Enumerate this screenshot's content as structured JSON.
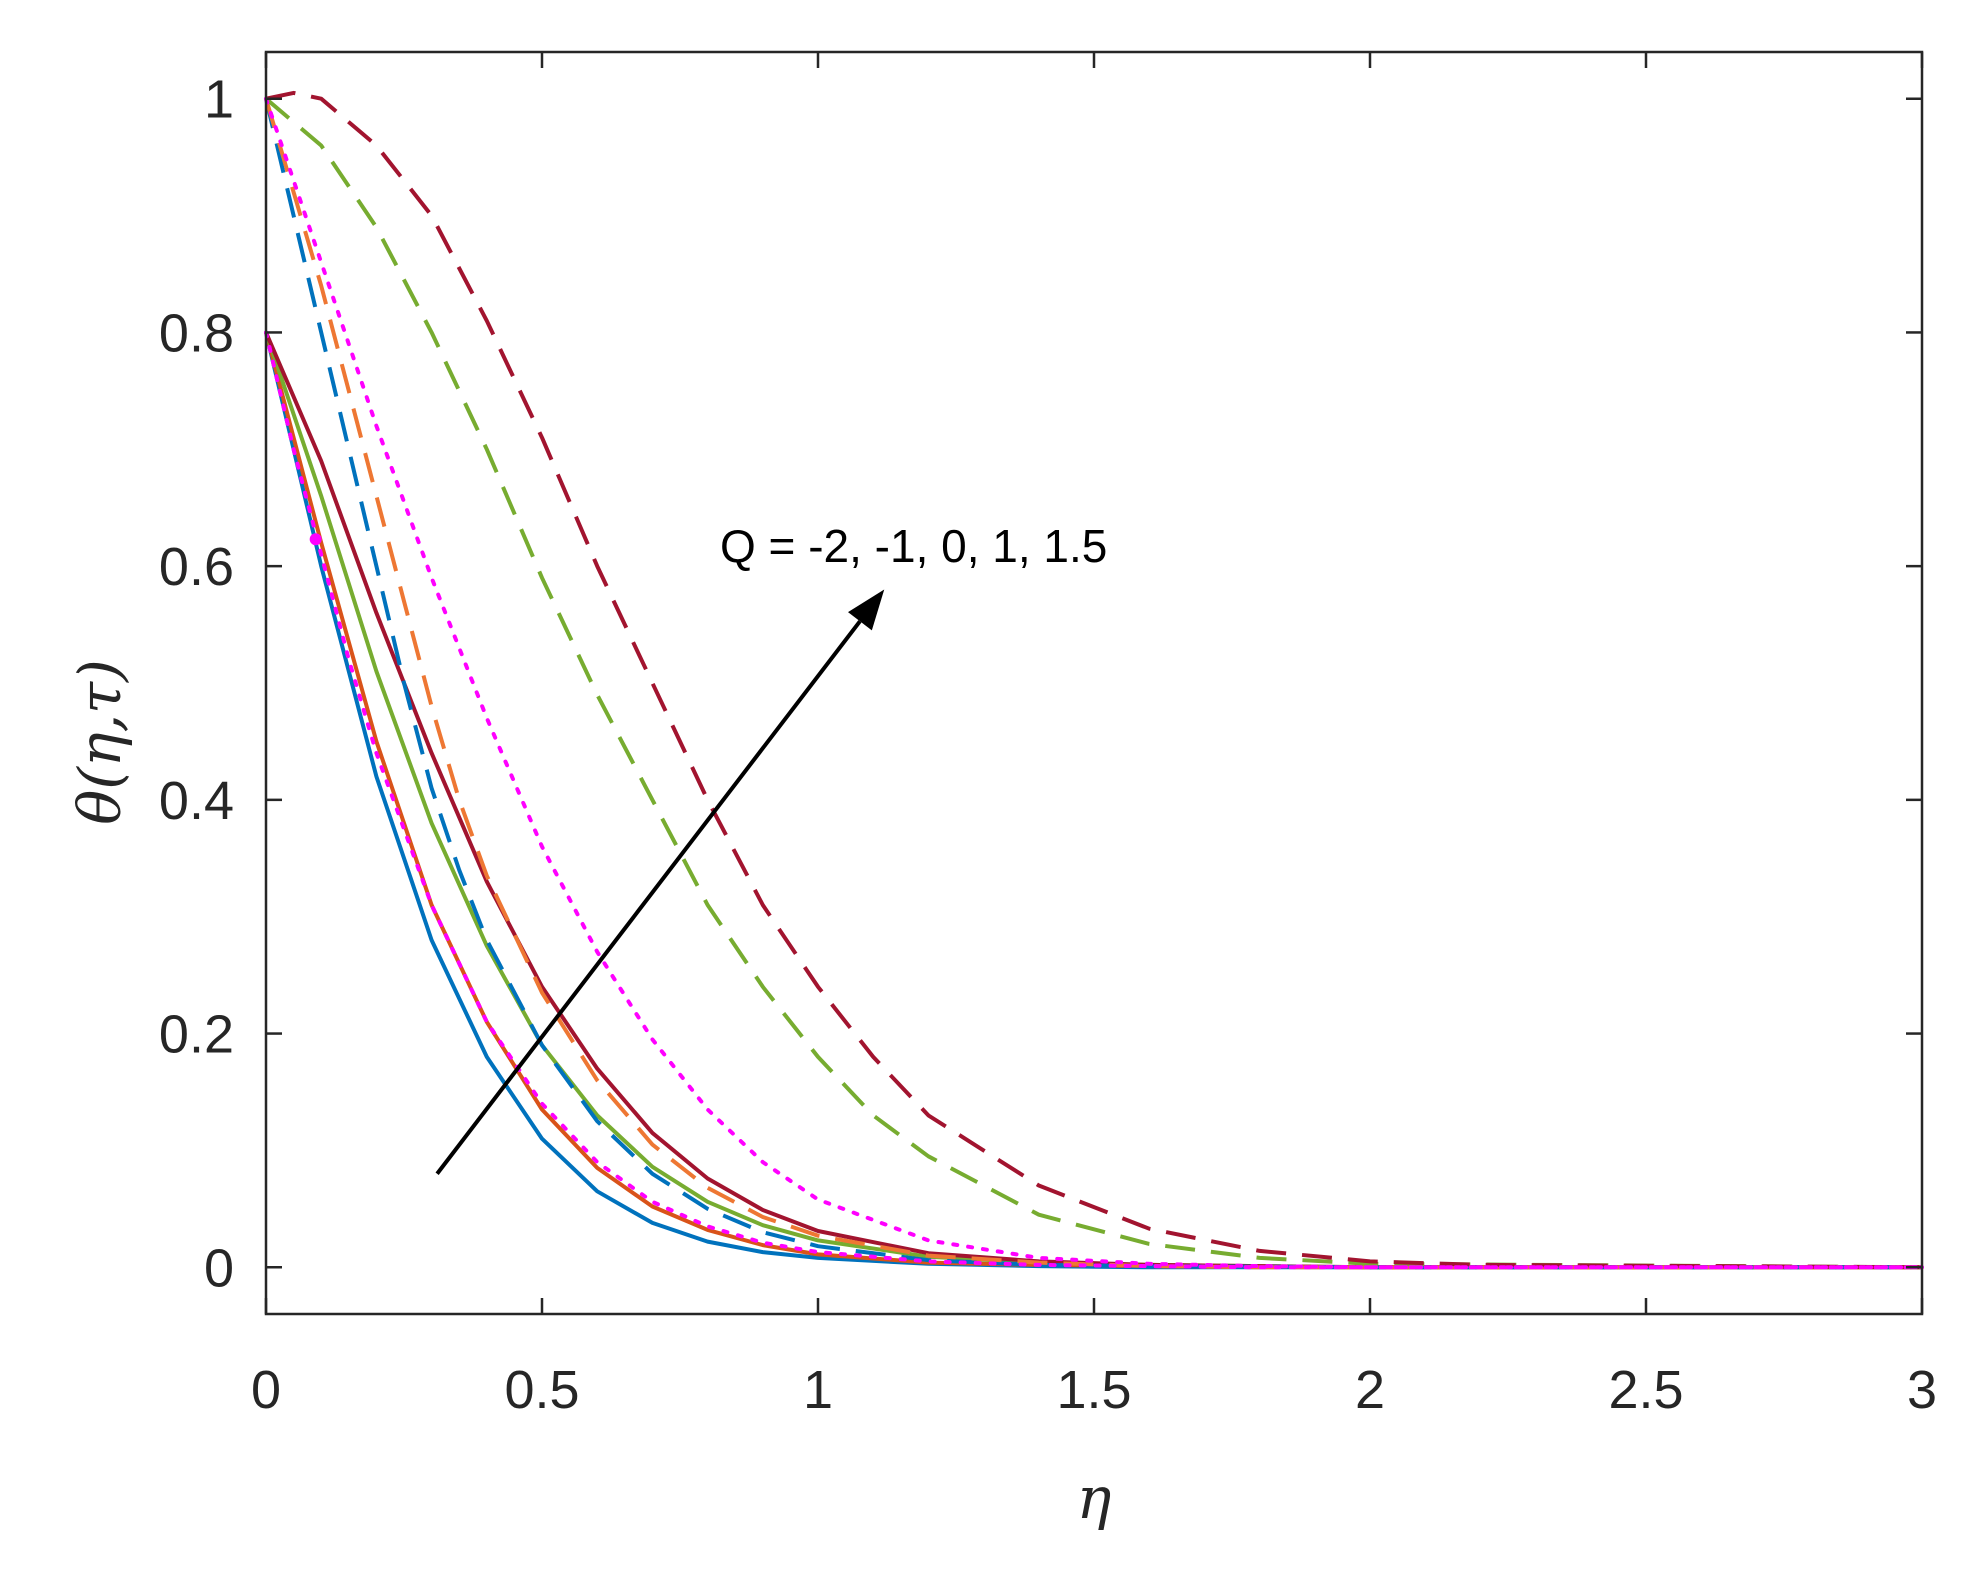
{
  "chart_data": {
    "type": "line",
    "xlabel": "η",
    "ylabel": "θ(η,τ)",
    "xlim": [
      0,
      3
    ],
    "ylim": [
      -0.04,
      1.04
    ],
    "xticks": [
      "0",
      "0.5",
      "1",
      "1.5",
      "2",
      "2.5",
      "3"
    ],
    "yticks": [
      "0",
      "0.2",
      "0.4",
      "0.6",
      "0.8",
      "1"
    ],
    "grid": false,
    "box": true,
    "annotation": {
      "text": "Q = -2, -1, 0, 1, 1.5",
      "arrow_from": [
        0.31,
        0.08
      ],
      "arrow_to": [
        1.12,
        0.58
      ]
    },
    "series": [
      {
        "group": "solid",
        "color": "#0072BD",
        "style": "solid",
        "x": [
          0,
          0.1,
          0.2,
          0.3,
          0.4,
          0.5,
          0.6,
          0.7,
          0.8,
          0.9,
          1.0,
          1.2,
          1.4,
          1.6,
          2.0,
          3.0
        ],
        "y": [
          0.8,
          0.6,
          0.42,
          0.28,
          0.18,
          0.11,
          0.065,
          0.038,
          0.022,
          0.013,
          0.008,
          0.003,
          0.001,
          0,
          0,
          0
        ]
      },
      {
        "group": "solid",
        "color": "#D95319",
        "style": "solid",
        "x": [
          0,
          0.1,
          0.2,
          0.3,
          0.4,
          0.5,
          0.6,
          0.7,
          0.8,
          0.9,
          1.0,
          1.2,
          1.4,
          1.6,
          2.0,
          3.0
        ],
        "y": [
          0.8,
          0.62,
          0.45,
          0.31,
          0.21,
          0.135,
          0.085,
          0.052,
          0.032,
          0.019,
          0.011,
          0.004,
          0.002,
          0.001,
          0,
          0
        ]
      },
      {
        "group": "solid",
        "color": "#77AC30",
        "style": "solid",
        "x": [
          0,
          0.1,
          0.2,
          0.3,
          0.4,
          0.5,
          0.6,
          0.7,
          0.8,
          0.9,
          1.0,
          1.2,
          1.4,
          1.6,
          1.8,
          2.0,
          3.0
        ],
        "y": [
          0.8,
          0.66,
          0.51,
          0.38,
          0.275,
          0.19,
          0.13,
          0.086,
          0.056,
          0.036,
          0.023,
          0.009,
          0.004,
          0.002,
          0.001,
          0,
          0
        ]
      },
      {
        "group": "solid",
        "color": "#A2142F",
        "style": "solid",
        "x": [
          0,
          0.1,
          0.2,
          0.3,
          0.4,
          0.5,
          0.6,
          0.7,
          0.8,
          0.9,
          1.0,
          1.2,
          1.4,
          1.6,
          1.8,
          2.0,
          3.0
        ],
        "y": [
          0.8,
          0.69,
          0.56,
          0.44,
          0.33,
          0.24,
          0.17,
          0.115,
          0.076,
          0.049,
          0.031,
          0.012,
          0.005,
          0.002,
          0.001,
          0,
          0
        ]
      },
      {
        "group": "dashed",
        "color": "#0072BD",
        "style": "dashed",
        "x": [
          0,
          0.05,
          0.1,
          0.15,
          0.2,
          0.25,
          0.3,
          0.35,
          0.4,
          0.5,
          0.6,
          0.7,
          0.8,
          0.9,
          1.0,
          1.2,
          1.4,
          1.6,
          2.0,
          3.0
        ],
        "y": [
          1.0,
          0.9,
          0.8,
          0.7,
          0.6,
          0.5,
          0.41,
          0.34,
          0.28,
          0.19,
          0.125,
          0.08,
          0.05,
          0.03,
          0.018,
          0.006,
          0.002,
          0.001,
          0,
          0
        ]
      },
      {
        "group": "dashed",
        "color": "#EE7733",
        "style": "dashed",
        "x": [
          0,
          0.05,
          0.1,
          0.15,
          0.2,
          0.25,
          0.3,
          0.35,
          0.4,
          0.5,
          0.6,
          0.7,
          0.8,
          0.9,
          1.0,
          1.2,
          1.4,
          1.6,
          1.8,
          2.0,
          3.0
        ],
        "y": [
          1.0,
          0.92,
          0.84,
          0.75,
          0.66,
          0.57,
          0.48,
          0.4,
          0.335,
          0.235,
          0.16,
          0.105,
          0.068,
          0.043,
          0.027,
          0.01,
          0.004,
          0.001,
          0,
          0,
          0
        ]
      },
      {
        "group": "dashed",
        "color": "#77AC30",
        "style": "dashed",
        "x": [
          0,
          0.1,
          0.2,
          0.3,
          0.4,
          0.5,
          0.6,
          0.7,
          0.8,
          0.9,
          1.0,
          1.1,
          1.2,
          1.4,
          1.6,
          1.8,
          2.0,
          3.0
        ],
        "y": [
          1.0,
          0.96,
          0.89,
          0.8,
          0.7,
          0.59,
          0.49,
          0.4,
          0.31,
          0.24,
          0.18,
          0.13,
          0.095,
          0.045,
          0.02,
          0.008,
          0.003,
          0
        ]
      },
      {
        "group": "dashed",
        "color": "#A2142F",
        "style": "dashed",
        "x": [
          0,
          0.05,
          0.1,
          0.2,
          0.3,
          0.4,
          0.5,
          0.6,
          0.7,
          0.8,
          0.9,
          1.0,
          1.1,
          1.2,
          1.4,
          1.6,
          1.8,
          2.0,
          2.2,
          3.0
        ],
        "y": [
          1.0,
          1.005,
          1.0,
          0.96,
          0.9,
          0.81,
          0.71,
          0.6,
          0.5,
          0.4,
          0.31,
          0.24,
          0.18,
          0.13,
          0.07,
          0.033,
          0.014,
          0.005,
          0.002,
          0
        ]
      },
      {
        "group": "dotted",
        "color": "#FF00FF",
        "style": "dotted",
        "x": [
          0,
          0.05,
          0.1,
          0.15,
          0.2,
          0.3,
          0.4,
          0.5,
          0.6,
          0.7,
          0.8,
          0.9,
          1.0,
          1.2,
          1.4,
          1.6,
          1.8,
          2.0,
          3.0
        ],
        "y": [
          0.8,
          0.7,
          0.61,
          0.52,
          0.44,
          0.31,
          0.21,
          0.14,
          0.09,
          0.056,
          0.035,
          0.021,
          0.013,
          0.005,
          0.002,
          0.001,
          0,
          0,
          0
        ]
      },
      {
        "group": "dotted",
        "color": "#FF00FF",
        "style": "dotted",
        "x": [
          0,
          0.1,
          0.2,
          0.3,
          0.4,
          0.5,
          0.6,
          0.7,
          0.8,
          0.9,
          1.0,
          1.2,
          1.4,
          1.6,
          1.8,
          2.0,
          3.0
        ],
        "y": [
          1.0,
          0.86,
          0.72,
          0.59,
          0.47,
          0.36,
          0.27,
          0.195,
          0.135,
          0.09,
          0.058,
          0.023,
          0.008,
          0.003,
          0.001,
          0,
          0
        ]
      }
    ],
    "markers": [
      {
        "x": 0.09,
        "y": 0.623,
        "color": "#FF00FF"
      }
    ]
  }
}
